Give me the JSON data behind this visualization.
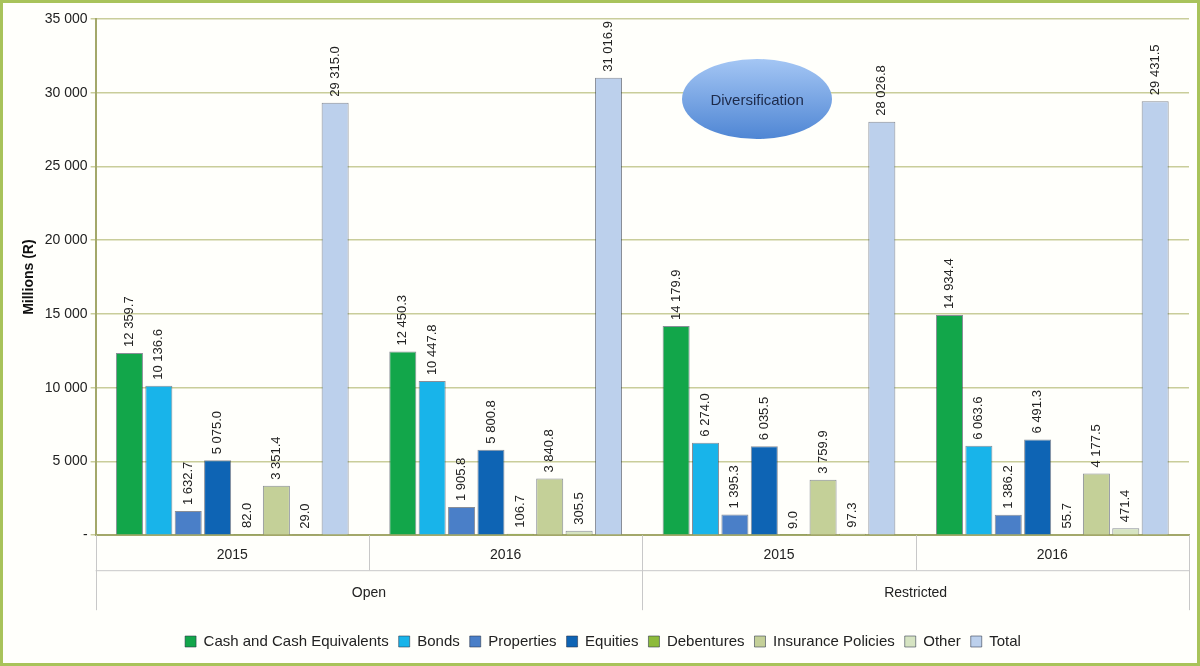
{
  "chart_data": {
    "type": "bar",
    "ylabel": "Millions (R)",
    "categories": [
      "2015",
      "2016",
      "2015",
      "2016"
    ],
    "series": [
      {
        "name": "Cash and Cash Equivalents",
        "color": "#12a64a",
        "values": [
          12359.7,
          12450.3,
          14179.9,
          14934.4
        ],
        "value_labels": [
          "12 359.7",
          "12 450.3",
          "14 179.9",
          "14 934.4"
        ]
      },
      {
        "name": "Bonds",
        "color": "#18b4ea",
        "values": [
          10136.6,
          10447.8,
          6274.0,
          6063.6
        ],
        "value_labels": [
          "10 136.6",
          "10 447.8",
          "6 274.0",
          "6 063.6"
        ]
      },
      {
        "name": "Properties",
        "color": "#4a7fc8",
        "values": [
          1632.7,
          1905.8,
          1395.3,
          1386.2
        ],
        "value_labels": [
          "1 632.7",
          "1 905.8",
          "1 395.3",
          "1 386.2"
        ]
      },
      {
        "name": "Equities",
        "color": "#0e64b4",
        "values": [
          5075.0,
          5800.8,
          6035.5,
          6491.3
        ],
        "value_labels": [
          "5 075.0",
          "5 800.8",
          "6 035.5",
          "6 491.3"
        ]
      },
      {
        "name": "Debentures",
        "color": "#8dbb3b",
        "values": [
          82.0,
          106.7,
          9.0,
          55.7
        ],
        "value_labels": [
          "82.0",
          "106.7",
          "9.0",
          "55.7"
        ]
      },
      {
        "name": "Insurance Policies",
        "color": "#c4d098",
        "values": [
          3351.4,
          3840.8,
          3759.9,
          4177.5
        ],
        "value_labels": [
          "3 351.4",
          "3 840.8",
          "3 759.9",
          "4 177.5"
        ]
      },
      {
        "name": "Other",
        "color": "#d6e4c2",
        "values": [
          29.0,
          305.5,
          97.3,
          471.4
        ],
        "value_labels": [
          "29.0",
          "305.5",
          "97.3",
          "471.4"
        ]
      },
      {
        "name": "Total",
        "color": "#bcd0ec",
        "values": [
          29315.0,
          31016.9,
          28026.8,
          29431.5
        ],
        "value_labels": [
          "29 315.0",
          "31 016.9",
          "28 026.8",
          "29 431.5"
        ]
      }
    ],
    "ylim": [
      0,
      35000
    ],
    "yticks": [
      {
        "value": 0,
        "label": "-"
      },
      {
        "value": 5000,
        "label": "5 000"
      },
      {
        "value": 10000,
        "label": "10 000"
      },
      {
        "value": 15000,
        "label": "15 000"
      },
      {
        "value": 20000,
        "label": "20 000"
      },
      {
        "value": 25000,
        "label": "25 000"
      },
      {
        "value": 30000,
        "label": "30 000"
      },
      {
        "value": 35000,
        "label": "35 000"
      }
    ],
    "grid": "y",
    "legend": "bottom",
    "annotations": [
      "Open",
      "Restricted",
      "Diversification"
    ]
  }
}
